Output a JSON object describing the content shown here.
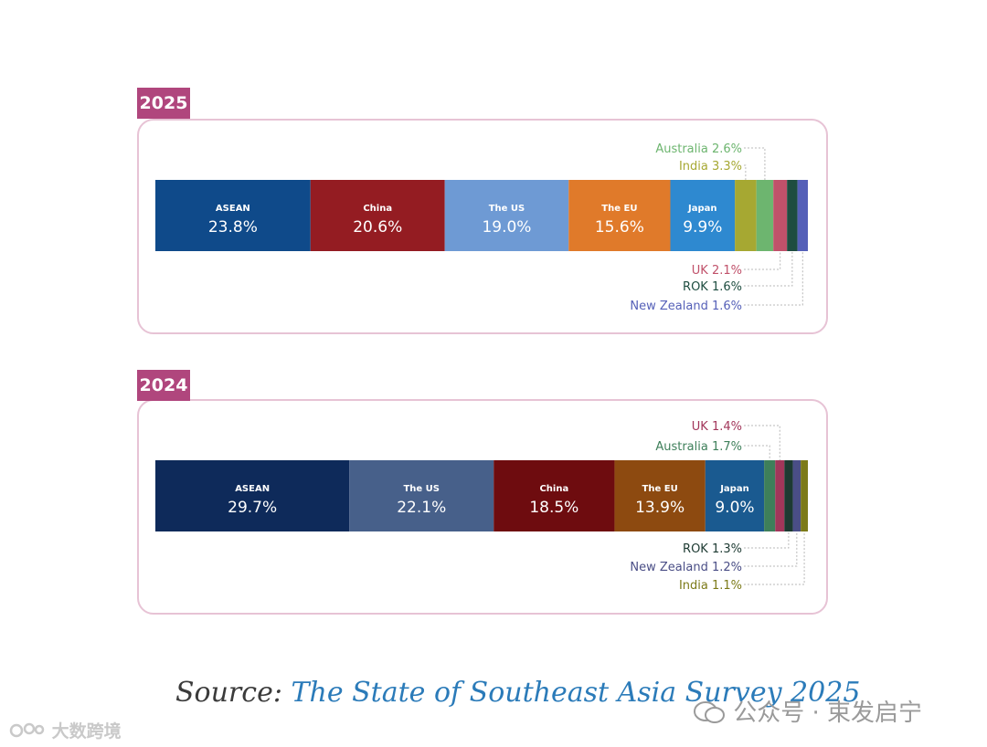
{
  "chart_data": [
    {
      "type": "bar",
      "stacked": true,
      "orientation": "horizontal",
      "title": "2025",
      "series": [
        {
          "name": "ASEAN",
          "value": 23.8,
          "label": "23.8%",
          "color": "#0f4a8a"
        },
        {
          "name": "China",
          "value": 20.6,
          "label": "20.6%",
          "color": "#941c22"
        },
        {
          "name": "The US",
          "value": 19.0,
          "label": "19.0%",
          "color": "#6e9ad4"
        },
        {
          "name": "The EU",
          "value": 15.6,
          "label": "15.6%",
          "color": "#e07a2a"
        },
        {
          "name": "Japan",
          "value": 9.9,
          "label": "9.9%",
          "color": "#2e89d0"
        },
        {
          "name": "India",
          "value": 3.3,
          "label": "India 3.3%",
          "color": "#a6a832"
        },
        {
          "name": "Australia",
          "value": 2.6,
          "label": "Australia 2.6%",
          "color": "#6db56f"
        },
        {
          "name": "UK",
          "value": 2.1,
          "label": "UK 2.1%",
          "color": "#c0516a"
        },
        {
          "name": "ROK",
          "value": 1.6,
          "label": "ROK 1.6%",
          "color": "#1e4d40"
        },
        {
          "name": "New Zealand",
          "value": 1.6,
          "label": "New Zealand 1.6%",
          "color": "#5560b8"
        }
      ],
      "callouts_above": [
        "Australia",
        "India"
      ],
      "callouts_below": [
        "UK",
        "ROK",
        "New Zealand"
      ]
    },
    {
      "type": "bar",
      "stacked": true,
      "orientation": "horizontal",
      "title": "2024",
      "series": [
        {
          "name": "ASEAN",
          "value": 29.7,
          "label": "29.7%",
          "color": "#0e2a5a"
        },
        {
          "name": "The US",
          "value": 22.1,
          "label": "22.1%",
          "color": "#47608a"
        },
        {
          "name": "China",
          "value": 18.5,
          "label": "18.5%",
          "color": "#6e0c0f"
        },
        {
          "name": "The EU",
          "value": 13.9,
          "label": "13.9%",
          "color": "#8d4a10"
        },
        {
          "name": "Japan",
          "value": 9.0,
          "label": "9.0%",
          "color": "#1a5a90"
        },
        {
          "name": "Australia",
          "value": 1.7,
          "label": "Australia 1.7%",
          "color": "#3e7f5a"
        },
        {
          "name": "UK",
          "value": 1.4,
          "label": "UK 1.4%",
          "color": "#a2365a"
        },
        {
          "name": "ROK",
          "value": 1.3,
          "label": "ROK 1.3%",
          "color": "#1d3a32"
        },
        {
          "name": "New Zealand",
          "value": 1.2,
          "label": "New Zealand 1.2%",
          "color": "#4a4e86"
        },
        {
          "name": "India",
          "value": 1.1,
          "label": "India 1.1%",
          "color": "#7c7a18"
        }
      ],
      "callouts_above": [
        "UK",
        "Australia"
      ],
      "callouts_below": [
        "ROK",
        "New Zealand",
        "India"
      ]
    }
  ],
  "source": {
    "prefix": "Source: ",
    "title": "The State of Southeast Asia Survey 2025"
  },
  "watermarks": {
    "right": "公众号 · 束发启宁",
    "left": "大数跨境"
  },
  "colors": {
    "tab": "#b0467d",
    "panel_border": "#e7c3d5",
    "callout_line": "#b8b8b8"
  }
}
